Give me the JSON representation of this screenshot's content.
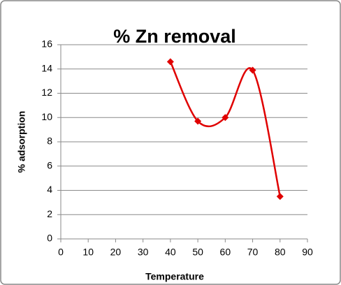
{
  "chart_data": {
    "type": "scatter",
    "title": "% Zn removal",
    "xlabel": "Temperature",
    "ylabel": "% adsorption",
    "x": [
      40,
      50,
      60,
      70,
      80
    ],
    "values": [
      14.6,
      9.7,
      10.0,
      13.9,
      3.5
    ],
    "color": "#e00000",
    "smooth": true,
    "xlim": [
      0,
      90
    ],
    "xticks": [
      0,
      10,
      20,
      30,
      40,
      50,
      60,
      70,
      80,
      90
    ],
    "ylim": [
      0,
      16
    ],
    "yticks": [
      0,
      2,
      4,
      6,
      8,
      10,
      12,
      14,
      16
    ],
    "grid": true
  }
}
